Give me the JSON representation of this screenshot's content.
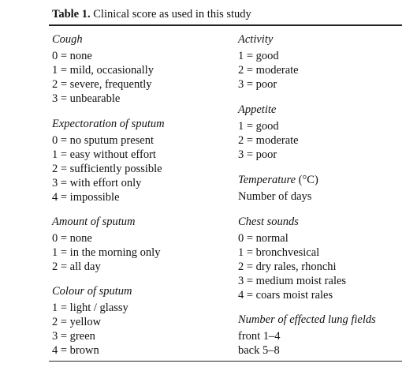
{
  "title": {
    "label": "Table 1.",
    "text": "Clinical score as used in this study"
  },
  "columns": [
    {
      "sections": [
        {
          "heading": "Cough",
          "items": [
            "0 = none",
            "1 = mild, occasionally",
            "2 = severe, frequently",
            "3 = unbearable"
          ]
        },
        {
          "heading": "Expectoration of sputum",
          "items": [
            "0 = no sputum present",
            "1 = easy without effort",
            "2 = sufficiently possible",
            "3 = with effort only",
            "4 = impossible"
          ]
        },
        {
          "heading": "Amount of sputum",
          "items": [
            "0 = none",
            "1 = in the morning only",
            "2 = all day"
          ]
        },
        {
          "heading": "Colour of sputum",
          "items": [
            "1 = light / glassy",
            "2 = yellow",
            "3 = green",
            "4 = brown"
          ]
        }
      ]
    },
    {
      "sections": [
        {
          "heading": "Activity",
          "items": [
            "1 = good",
            "2 = moderate",
            "3 = poor"
          ]
        },
        {
          "heading": "Appetite",
          "items": [
            "1 = good",
            "2 = moderate",
            "3 = poor"
          ]
        },
        {
          "heading": "Temperature",
          "unit": "(°C)",
          "items": [
            "Number of days"
          ]
        },
        {
          "heading": "Chest sounds",
          "items": [
            "0 = normal",
            "1 = bronchvesical",
            "2 = dry rales, rhonchi",
            "3 = medium moist rales",
            "4 = coars moist rales"
          ]
        },
        {
          "heading": "Number of effected lung fields",
          "items": [
            "front 1–4",
            "back 5–8"
          ]
        }
      ]
    }
  ]
}
